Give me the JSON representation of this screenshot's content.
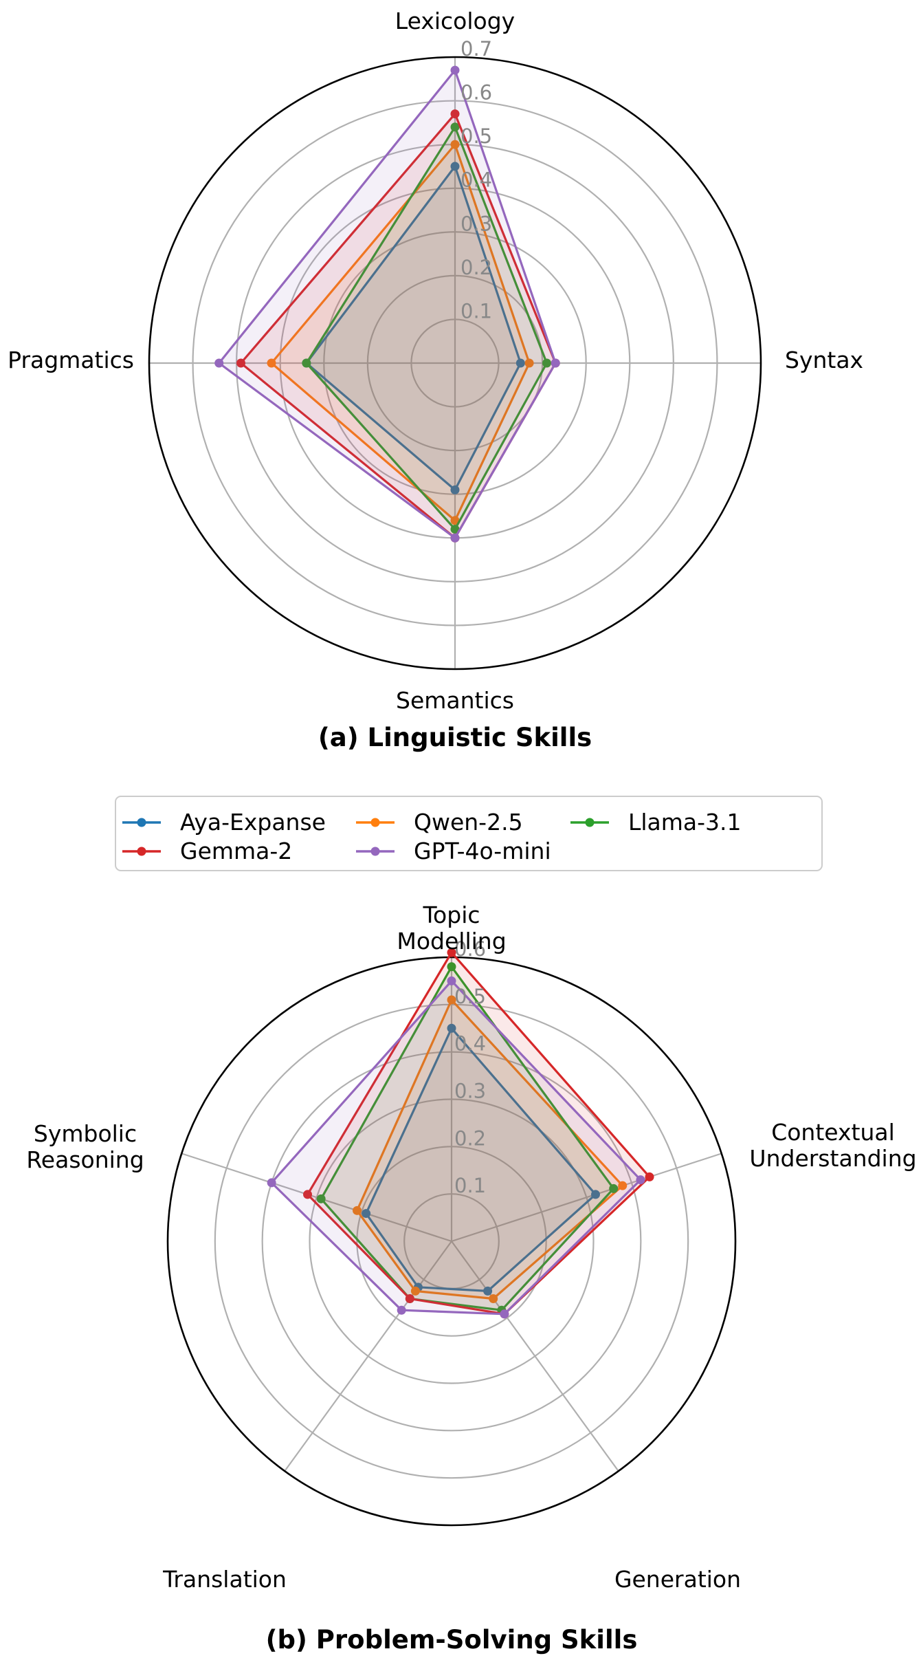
{
  "legend": {
    "entries": [
      "Aya-Expanse",
      "Qwen-2.5",
      "Llama-3.1",
      "Gemma-2",
      "GPT-4o-mini"
    ]
  },
  "series_colors": [
    "#1f77b4",
    "#ff7f0e",
    "#2ca02c",
    "#d62728",
    "#9467bd"
  ],
  "chart_data": [
    {
      "type": "radar",
      "title": "(a) Linguistic Skills",
      "axes": [
        "Lexicology",
        "Syntax",
        "Semantics",
        "Pragmatics"
      ],
      "rlim": [
        0,
        0.7
      ],
      "rticks": [
        0.1,
        0.2,
        0.3,
        0.4,
        0.5,
        0.6,
        0.7
      ],
      "rtick_labels": [
        "0.1",
        "0.2",
        "0.3",
        "0.4",
        "0.5",
        "0.6",
        "0.7"
      ],
      "grid": true,
      "series": [
        {
          "name": "Aya-Expanse",
          "values": [
            0.45,
            0.15,
            0.29,
            0.34
          ]
        },
        {
          "name": "Qwen-2.5",
          "values": [
            0.5,
            0.17,
            0.36,
            0.42
          ]
        },
        {
          "name": "Llama-3.1",
          "values": [
            0.54,
            0.21,
            0.38,
            0.34
          ]
        },
        {
          "name": "Gemma-2",
          "values": [
            0.57,
            0.23,
            0.4,
            0.49
          ]
        },
        {
          "name": "GPT-4o-mini",
          "values": [
            0.67,
            0.23,
            0.4,
            0.54
          ]
        }
      ]
    },
    {
      "type": "radar",
      "title": "(b) Problem-Solving Skills",
      "axes": [
        "Topic\nModelling",
        "Contextual\nUnderstanding",
        "Generation",
        "Translation",
        "Symbolic\nReasoning"
      ],
      "rlim": [
        0,
        0.6
      ],
      "rticks": [
        0.1,
        0.2,
        0.3,
        0.4,
        0.5,
        0.6
      ],
      "rtick_labels": [
        "0.1",
        "0.2",
        "0.3",
        "0.4",
        "0.5",
        "0.6"
      ],
      "grid": true,
      "series": [
        {
          "name": "Aya-Expanse",
          "values": [
            0.45,
            0.32,
            0.13,
            0.12,
            0.19
          ]
        },
        {
          "name": "Qwen-2.5",
          "values": [
            0.51,
            0.38,
            0.15,
            0.13,
            0.21
          ]
        },
        {
          "name": "Llama-3.1",
          "values": [
            0.58,
            0.36,
            0.18,
            0.15,
            0.29
          ]
        },
        {
          "name": "Gemma-2",
          "values": [
            0.61,
            0.44,
            0.19,
            0.15,
            0.32
          ]
        },
        {
          "name": "GPT-4o-mini",
          "values": [
            0.55,
            0.42,
            0.19,
            0.18,
            0.4
          ]
        }
      ]
    }
  ]
}
